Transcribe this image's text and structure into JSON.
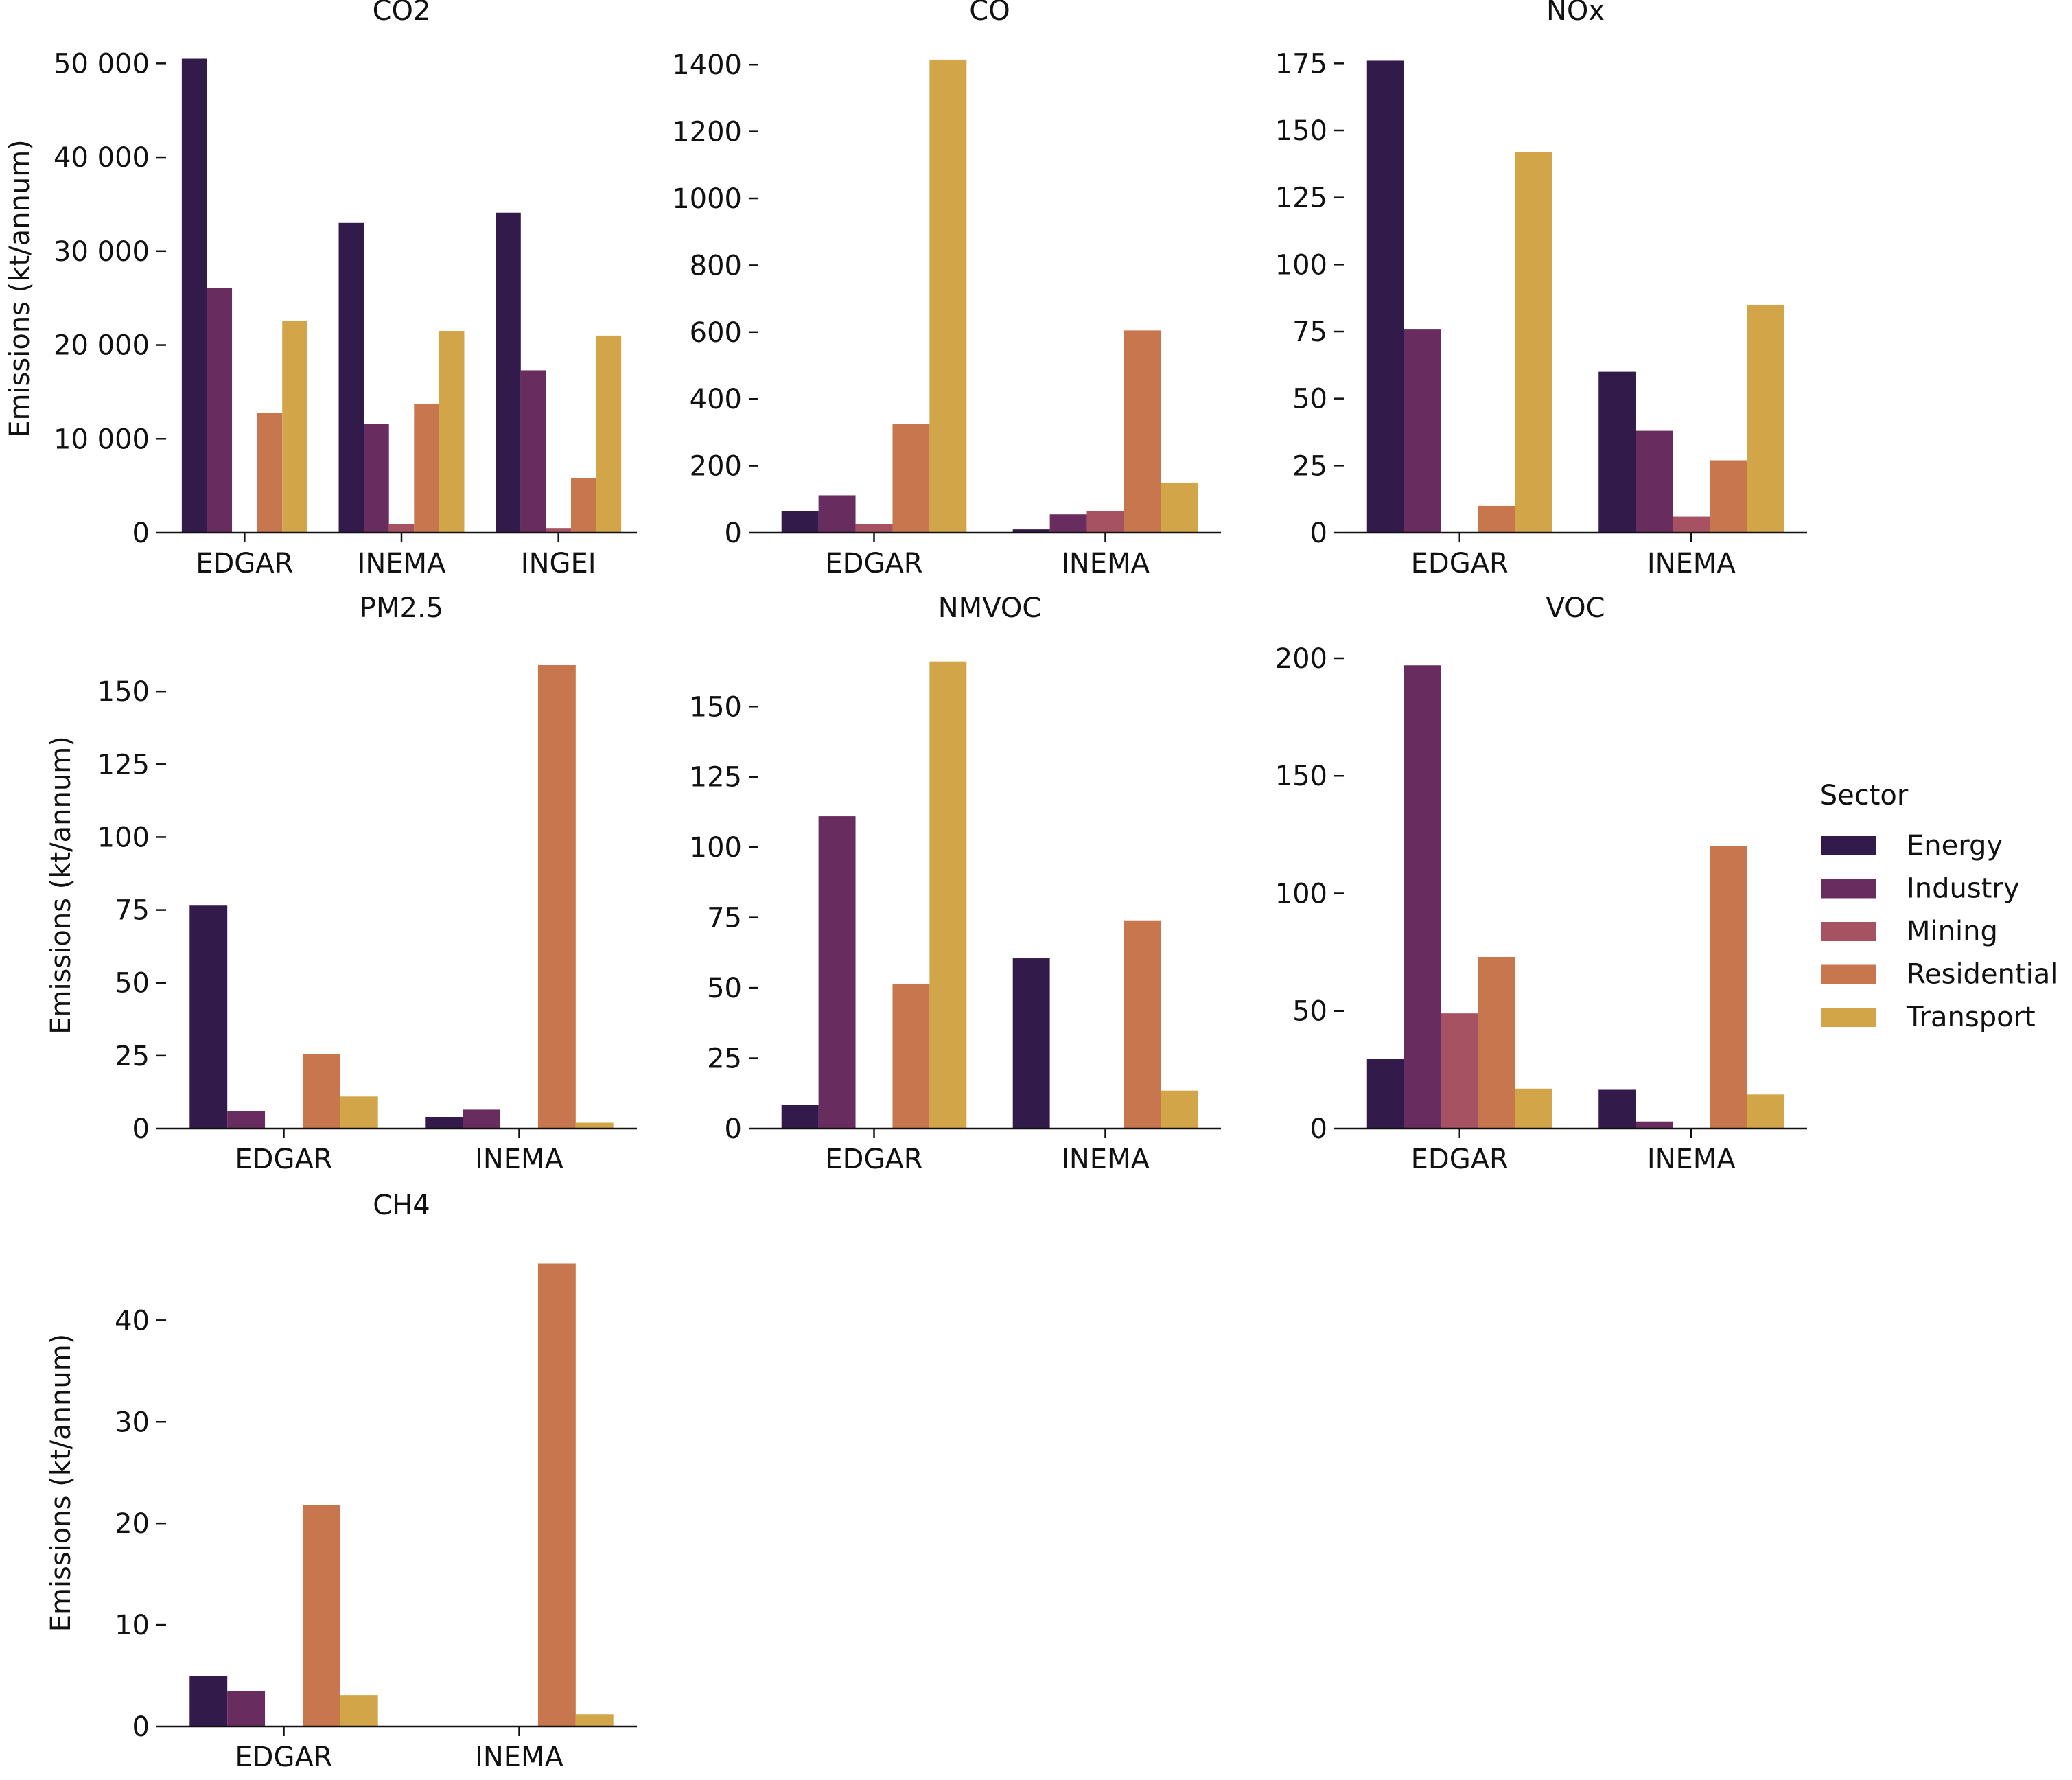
{
  "figure": {
    "ylabel": "Emissions (kt/annum)",
    "legend": {
      "title": "Sector",
      "placement": "right",
      "items": [
        "Energy",
        "Industry",
        "Mining",
        "Residential",
        "Transport"
      ]
    },
    "colors": {
      "Energy": "#321a4a",
      "Industry": "#682d5e",
      "Mining": "#a75262",
      "Residential": "#c7764d",
      "Transport": "#d1a548"
    }
  },
  "chart_data": [
    {
      "type": "bar",
      "title": "CO2",
      "categories": [
        "EDGAR",
        "INEMA",
        "INGEI"
      ],
      "ylim": [
        0,
        52000
      ],
      "yticks": [
        0,
        10000,
        20000,
        30000,
        40000,
        50000
      ],
      "ytick_labels": [
        "0",
        "10 000",
        "20 000",
        "30 000",
        "40 000",
        "50 000"
      ],
      "show_ylabel": true,
      "series": [
        {
          "name": "Energy",
          "values": [
            50500,
            33000,
            34100
          ]
        },
        {
          "name": "Industry",
          "values": [
            26100,
            11600,
            17300
          ]
        },
        {
          "name": "Mining",
          "values": [
            0,
            900,
            500
          ]
        },
        {
          "name": "Residential",
          "values": [
            12800,
            13700,
            5800
          ]
        },
        {
          "name": "Transport",
          "values": [
            22600,
            21500,
            21000
          ]
        }
      ]
    },
    {
      "type": "bar",
      "title": "CO",
      "categories": [
        "EDGAR",
        "INEMA"
      ],
      "ylim": [
        0,
        1460
      ],
      "yticks": [
        0,
        200,
        400,
        600,
        800,
        1000,
        1200,
        1400
      ],
      "ytick_labels": [
        "0",
        "200",
        "400",
        "600",
        "800",
        "1000",
        "1200",
        "1400"
      ],
      "show_ylabel": false,
      "series": [
        {
          "name": "Energy",
          "values": [
            65,
            10
          ]
        },
        {
          "name": "Industry",
          "values": [
            112,
            55
          ]
        },
        {
          "name": "Mining",
          "values": [
            25,
            65
          ]
        },
        {
          "name": "Residential",
          "values": [
            325,
            605
          ]
        },
        {
          "name": "Transport",
          "values": [
            1415,
            150
          ]
        }
      ]
    },
    {
      "type": "bar",
      "title": "NOx",
      "categories": [
        "EDGAR",
        "INEMA"
      ],
      "ylim": [
        0,
        182
      ],
      "yticks": [
        0,
        25,
        50,
        75,
        100,
        125,
        150,
        175
      ],
      "ytick_labels": [
        "0",
        "25",
        "50",
        "75",
        "100",
        "125",
        "150",
        "175"
      ],
      "show_ylabel": false,
      "series": [
        {
          "name": "Energy",
          "values": [
            176,
            60
          ]
        },
        {
          "name": "Industry",
          "values": [
            76,
            38
          ]
        },
        {
          "name": "Mining",
          "values": [
            0,
            6
          ]
        },
        {
          "name": "Residential",
          "values": [
            10,
            27
          ]
        },
        {
          "name": "Transport",
          "values": [
            142,
            85
          ]
        }
      ]
    },
    {
      "type": "bar",
      "title": "PM2.5",
      "categories": [
        "EDGAR",
        "INEMA"
      ],
      "ylim": [
        0,
        167
      ],
      "yticks": [
        0,
        25,
        50,
        75,
        100,
        125,
        150
      ],
      "ytick_labels": [
        "0",
        "25",
        "50",
        "75",
        "100",
        "125",
        "150"
      ],
      "show_ylabel": true,
      "series": [
        {
          "name": "Energy",
          "values": [
            76.5,
            4
          ]
        },
        {
          "name": "Industry",
          "values": [
            6,
            6.5
          ]
        },
        {
          "name": "Mining",
          "values": [
            0,
            0
          ]
        },
        {
          "name": "Residential",
          "values": [
            25.5,
            159
          ]
        },
        {
          "name": "Transport",
          "values": [
            11,
            2
          ]
        }
      ]
    },
    {
      "type": "bar",
      "title": "NMVOC",
      "categories": [
        "EDGAR",
        "INEMA"
      ],
      "ylim": [
        0,
        173
      ],
      "yticks": [
        0,
        25,
        50,
        75,
        100,
        125,
        150
      ],
      "ytick_labels": [
        "0",
        "25",
        "50",
        "75",
        "100",
        "125",
        "150"
      ],
      "show_ylabel": false,
      "series": [
        {
          "name": "Energy",
          "values": [
            8.5,
            60.5
          ]
        },
        {
          "name": "Industry",
          "values": [
            111,
            0
          ]
        },
        {
          "name": "Mining",
          "values": [
            0,
            0
          ]
        },
        {
          "name": "Residential",
          "values": [
            51.5,
            74
          ]
        },
        {
          "name": "Transport",
          "values": [
            166,
            13.5
          ]
        }
      ]
    },
    {
      "type": "bar",
      "title": "VOC",
      "categories": [
        "EDGAR",
        "INEMA"
      ],
      "ylim": [
        0,
        207
      ],
      "yticks": [
        0,
        50,
        100,
        150,
        200
      ],
      "ytick_labels": [
        "0",
        "50",
        "100",
        "150",
        "200"
      ],
      "show_ylabel": false,
      "series": [
        {
          "name": "Energy",
          "values": [
            29.5,
            16.5
          ]
        },
        {
          "name": "Industry",
          "values": [
            197,
            3
          ]
        },
        {
          "name": "Mining",
          "values": [
            49,
            0
          ]
        },
        {
          "name": "Residential",
          "values": [
            73,
            120
          ]
        },
        {
          "name": "Transport",
          "values": [
            17,
            14.5
          ]
        }
      ]
    },
    {
      "type": "bar",
      "title": "CH4",
      "categories": [
        "EDGAR",
        "INEMA"
      ],
      "ylim": [
        0,
        48
      ],
      "yticks": [
        0,
        10,
        20,
        30,
        40
      ],
      "ytick_labels": [
        "0",
        "10",
        "20",
        "30",
        "40"
      ],
      "show_ylabel": true,
      "series": [
        {
          "name": "Energy",
          "values": [
            5,
            0
          ]
        },
        {
          "name": "Industry",
          "values": [
            3.5,
            0
          ]
        },
        {
          "name": "Mining",
          "values": [
            0,
            0
          ]
        },
        {
          "name": "Residential",
          "values": [
            21.8,
            45.6
          ]
        },
        {
          "name": "Transport",
          "values": [
            3.1,
            1.2
          ]
        }
      ]
    }
  ]
}
